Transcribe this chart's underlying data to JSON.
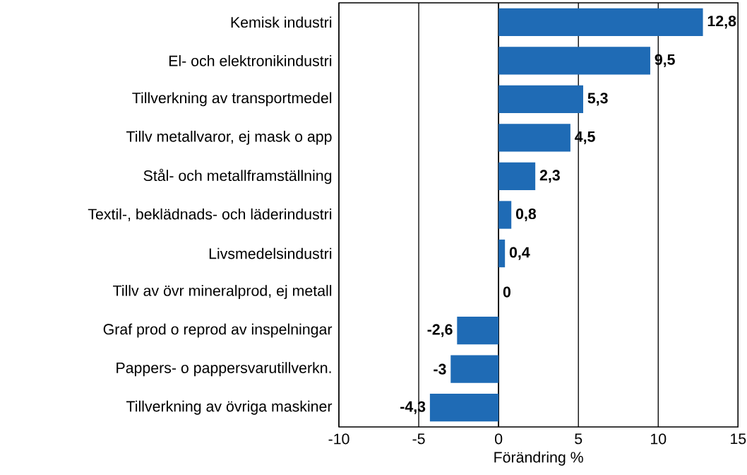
{
  "chart_data": {
    "type": "bar",
    "orientation": "horizontal",
    "xlabel": "Förändring %",
    "categories": [
      "Kemisk industri",
      "El- och elektronikindustri",
      "Tillverkning av transportmedel",
      "Tillv metallvaror, ej mask o app",
      "Stål- och metallframställning",
      "Textil-, beklädnads- och läderindustri",
      "Livsmedelsindustri",
      "Tillv av övr mineralprod, ej metall",
      "Graf prod o reprod av inspelningar",
      "Pappers- o pappersvarutillverkn.",
      "Tillverkning av övriga maskiner"
    ],
    "values": [
      12.8,
      9.5,
      5.3,
      4.5,
      2.3,
      0.8,
      0.4,
      0,
      -2.6,
      -3,
      -4.3
    ],
    "value_labels": [
      "12,8",
      "9,5",
      "5,3",
      "4,5",
      "2,3",
      "0,8",
      "0,4",
      "0",
      "-2,6",
      "-3",
      "-4,3"
    ],
    "color": "#1f6bb5",
    "xlim": [
      -10,
      15
    ],
    "xticks": [
      -10,
      -5,
      0,
      5,
      10,
      15
    ],
    "grid": "x"
  }
}
